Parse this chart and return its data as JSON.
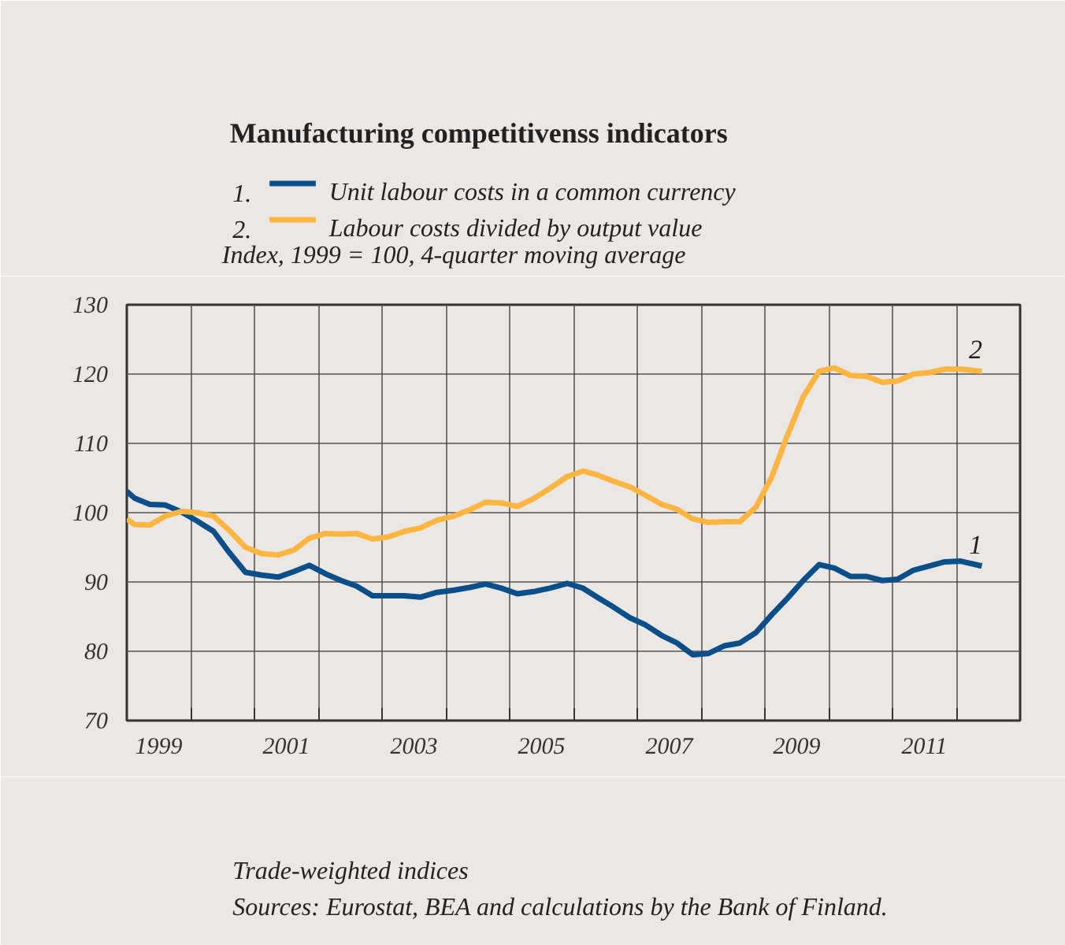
{
  "chart_data": {
    "type": "line",
    "title": "Manufacturing competitivenss indicators",
    "ylabel": "Index, 1999 = 100, 4-quarter moving average",
    "x": [
      1999.0,
      1999.12,
      1999.36,
      1999.6,
      1999.86,
      2000.1,
      2000.36,
      2000.61,
      2000.86,
      2001.11,
      2001.37,
      2001.62,
      2001.86,
      2002.11,
      2002.36,
      2002.6,
      2002.85,
      2003.1,
      2003.35,
      2003.6,
      2003.86,
      2004.12,
      2004.37,
      2004.62,
      2004.87,
      2005.12,
      2005.37,
      2005.63,
      2005.9,
      2006.15,
      2006.39,
      2006.64,
      2006.89,
      2007.13,
      2007.38,
      2007.62,
      2007.87,
      2008.12,
      2008.37,
      2008.61,
      2008.86,
      2009.11,
      2009.35,
      2009.6,
      2009.85,
      2010.09,
      2010.34,
      2010.59,
      2010.84,
      2011.08,
      2011.33,
      2011.57,
      2011.82,
      2012.07,
      2012.4
    ],
    "series": [
      {
        "name": "Unit labour costs in a common currency",
        "color": "#0a4f8a",
        "values": [
          103.1,
          102.1,
          101.2,
          101.1,
          100.1,
          98.8,
          97.3,
          94.2,
          91.4,
          91.0,
          90.7,
          91.5,
          92.4,
          91.2,
          90.2,
          89.4,
          88.0,
          88.0,
          88.0,
          87.8,
          88.5,
          88.8,
          89.2,
          89.7,
          89.1,
          88.3,
          88.6,
          89.1,
          89.8,
          89.1,
          87.7,
          86.3,
          84.8,
          83.8,
          82.3,
          81.2,
          79.5,
          79.7,
          80.8,
          81.2,
          82.7,
          85.3,
          87.6,
          90.2,
          92.5,
          92.0,
          90.8,
          90.8,
          90.2,
          90.4,
          91.7,
          92.3,
          92.9,
          93.0,
          92.3
        ]
      },
      {
        "name": "Labour costs divided by output value",
        "color": "#fbb540",
        "values": [
          99.1,
          98.3,
          98.2,
          99.5,
          100.2,
          100.0,
          99.5,
          97.4,
          95.0,
          94.1,
          93.9,
          94.6,
          96.3,
          97.0,
          96.9,
          97.0,
          96.2,
          96.5,
          97.3,
          97.8,
          98.9,
          99.5,
          100.4,
          101.5,
          101.4,
          100.9,
          102.0,
          103.5,
          105.2,
          106.0,
          105.4,
          104.5,
          103.7,
          102.5,
          101.2,
          100.5,
          99.1,
          98.6,
          98.7,
          98.7,
          100.8,
          105.2,
          111.1,
          116.7,
          120.4,
          120.9,
          119.8,
          119.7,
          118.8,
          119.0,
          120.0,
          120.2,
          120.7,
          120.7,
          120.4
        ]
      }
    ],
    "xlim": [
      1999,
      2013
    ],
    "ylim": [
      70,
      130
    ],
    "xticks": [
      {
        "value": 1999.5,
        "label": "1999"
      },
      {
        "value": 2001.5,
        "label": "2001"
      },
      {
        "value": 2003.5,
        "label": "2003"
      },
      {
        "value": 2005.5,
        "label": "2005"
      },
      {
        "value": 2007.5,
        "label": "2007"
      },
      {
        "value": 2009.5,
        "label": "2009"
      },
      {
        "value": 2011.5,
        "label": "2011"
      },
      {
        "value": 2000,
        "label": null
      },
      {
        "value": 2001,
        "label": null
      },
      {
        "value": 2002,
        "label": null
      },
      {
        "value": 2003,
        "label": null
      },
      {
        "value": 2004,
        "label": null
      },
      {
        "value": 2005,
        "label": null
      },
      {
        "value": 2006,
        "label": null
      },
      {
        "value": 2007,
        "label": null
      },
      {
        "value": 2008,
        "label": null
      },
      {
        "value": 2009,
        "label": null
      },
      {
        "value": 2010,
        "label": null
      },
      {
        "value": 2011,
        "label": null
      },
      {
        "value": 2012,
        "label": null
      }
    ],
    "yticks": [
      70,
      80,
      90,
      100,
      110,
      120,
      130
    ],
    "grid": true,
    "legend": "top",
    "line_style": "solid",
    "marker": "none",
    "annotations": [
      "1.",
      "2.",
      "1",
      "2",
      "Trade-weighted indices",
      "Sources: Eurostat, BEA and calculations by the Bank of Finland."
    ]
  }
}
